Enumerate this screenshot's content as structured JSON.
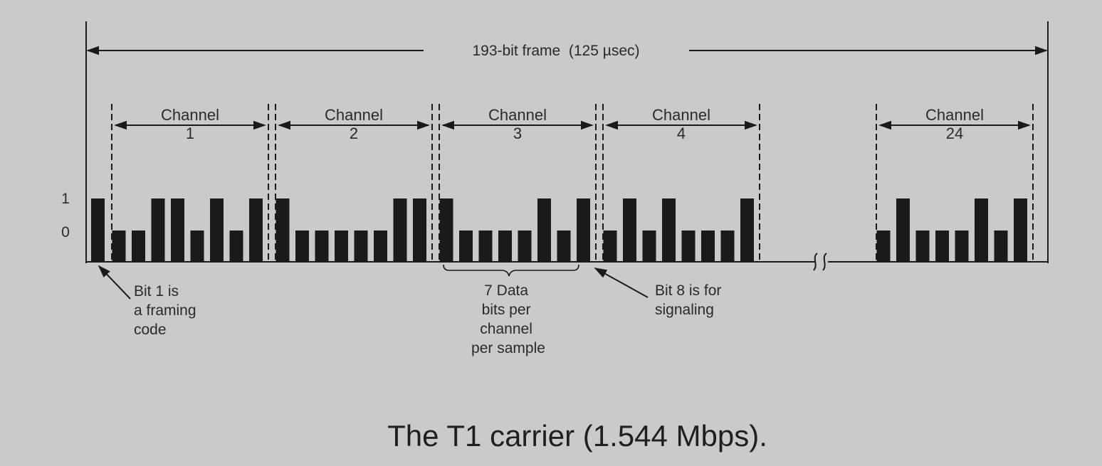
{
  "frame_label": "193-bit frame  (125 µsec)",
  "level_labels": {
    "one": "1",
    "zero": "0"
  },
  "channels": [
    {
      "word": "Channel",
      "number": "1",
      "bits": [
        0,
        0,
        1,
        1,
        0,
        1,
        0,
        1
      ]
    },
    {
      "word": "Channel",
      "number": "2",
      "bits": [
        1,
        0,
        0,
        0,
        0,
        0,
        1,
        1
      ]
    },
    {
      "word": "Channel",
      "number": "3",
      "bits": [
        1,
        0,
        0,
        0,
        0,
        1,
        0,
        1
      ]
    },
    {
      "word": "Channel",
      "number": "4",
      "bits": [
        0,
        1,
        0,
        1,
        0,
        0,
        0,
        1
      ]
    },
    {
      "word": "Channel",
      "number": "24",
      "bits": [
        0,
        1,
        0,
        0,
        0,
        1,
        0,
        1
      ]
    }
  ],
  "framing_bit": 1,
  "annotations": {
    "framing": [
      "Bit 1 is",
      "a framing",
      "code"
    ],
    "data_bits": [
      "7 Data",
      "bits per",
      "channel",
      "per sample"
    ],
    "signaling": [
      "Bit 8 is for",
      "signaling"
    ]
  },
  "caption": "The T1 carrier (1.544 Mbps).",
  "colors": {
    "background": "#c9cbc8",
    "ink": "#1a1a1a",
    "text": "#2a2a2a"
  }
}
